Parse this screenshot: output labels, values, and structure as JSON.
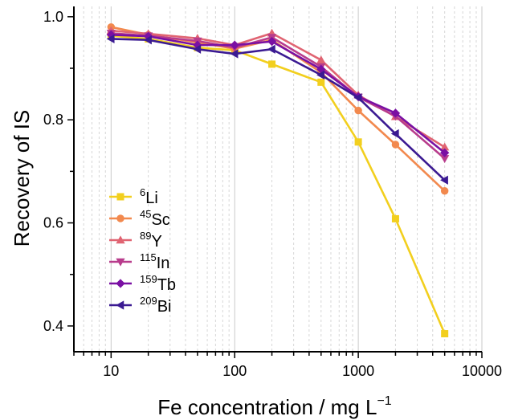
{
  "chart_data": {
    "type": "line",
    "xscale": "log",
    "x": [
      10,
      20,
      50,
      100,
      200,
      500,
      1000,
      2000,
      5000
    ],
    "xlim": [
      5,
      10000
    ],
    "ylim": [
      0.35,
      1.02
    ],
    "xticks": [
      10,
      100,
      1000,
      10000
    ],
    "xtick_labels": [
      "10",
      "100",
      "1000",
      "10000"
    ],
    "yticks": [
      0.4,
      0.6,
      0.8,
      1.0
    ],
    "ytick_labels": [
      "0.4",
      "0.6",
      "0.8",
      "1.0"
    ],
    "xlabel_pre": "Fe concentration / mg L",
    "xlabel_sup": "−1",
    "ylabel": "Recovery of IS",
    "grid": "vertical minor dashed",
    "legend_placement": "lower-left",
    "series": [
      {
        "name": "Li",
        "sup": "6",
        "marker": "square",
        "color": "#f2cf1e",
        "values": [
          0.963,
          0.957,
          0.94,
          0.935,
          0.908,
          0.873,
          0.757,
          0.608,
          0.385
        ]
      },
      {
        "name": "Sc",
        "sup": "45",
        "marker": "circle",
        "color": "#f2894e",
        "values": [
          0.98,
          0.965,
          0.95,
          0.938,
          0.955,
          0.892,
          0.818,
          0.752,
          0.662
        ]
      },
      {
        "name": "Y",
        "sup": "89",
        "marker": "triangle-up",
        "color": "#e06472",
        "values": [
          0.973,
          0.967,
          0.958,
          0.945,
          0.968,
          0.916,
          0.848,
          0.806,
          0.747
        ]
      },
      {
        "name": "In",
        "sup": "115",
        "marker": "triangle-down",
        "color": "#b83c8c",
        "values": [
          0.968,
          0.963,
          0.953,
          0.94,
          0.96,
          0.903,
          0.844,
          0.807,
          0.725
        ]
      },
      {
        "name": "Tb",
        "sup": "159",
        "marker": "diamond",
        "color": "#7a10a3",
        "values": [
          0.965,
          0.962,
          0.945,
          0.945,
          0.952,
          0.898,
          0.845,
          0.813,
          0.736
        ]
      },
      {
        "name": "Bi",
        "sup": "209",
        "marker": "triangle-left",
        "color": "#3b1a92",
        "values": [
          0.957,
          0.955,
          0.937,
          0.928,
          0.937,
          0.887,
          0.843,
          0.773,
          0.683
        ]
      }
    ]
  }
}
